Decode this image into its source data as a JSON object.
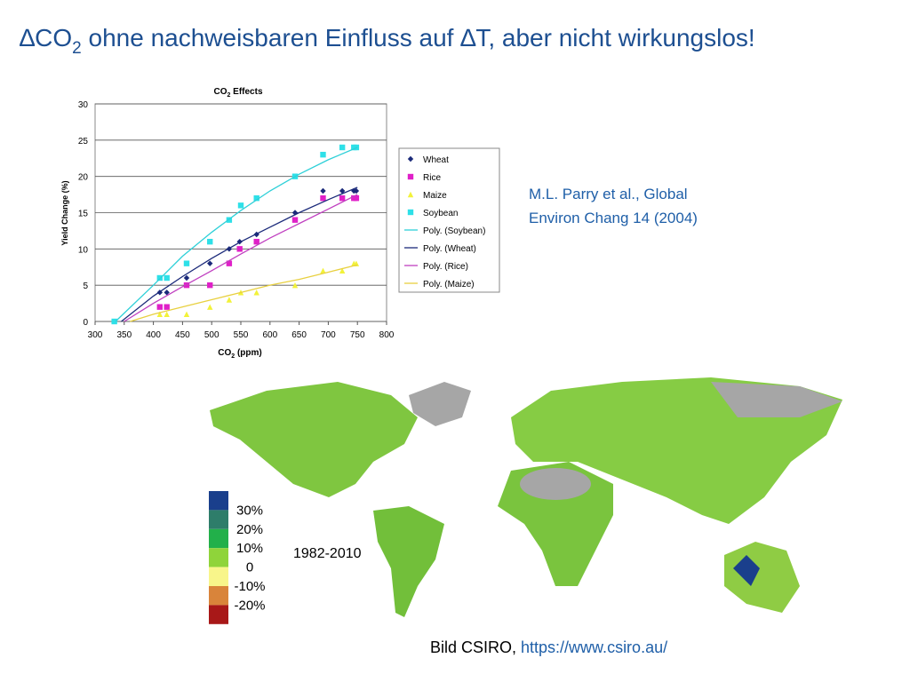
{
  "header": {
    "title": [
      "∆CO",
      "2",
      " ohne nachweisbaren Einfluss auf ∆T, aber nicht wirkungslos!"
    ]
  },
  "chart_data": {
    "type": "scatter",
    "title": [
      "CO",
      "2",
      " Effects"
    ],
    "x_label": [
      "CO",
      "2",
      " (ppm)"
    ],
    "y_label": "Yield Change (%)",
    "xlim": [
      300,
      800
    ],
    "xticks": [
      300,
      350,
      400,
      450,
      500,
      550,
      600,
      650,
      700,
      750,
      800
    ],
    "ylim": [
      0,
      30
    ],
    "yticks": [
      0,
      5,
      10,
      15,
      20,
      25,
      30
    ],
    "grid": true,
    "legend": "right",
    "series": [
      {
        "name": "Wheat",
        "color": "#1b2a7a",
        "marker": "diamond",
        "x": [
          411,
          423,
          457,
          497,
          530,
          548,
          577,
          643,
          691,
          724,
          744,
          748
        ],
        "values": [
          4,
          4,
          6,
          8,
          10,
          11,
          12,
          15,
          18,
          18,
          18,
          18
        ]
      },
      {
        "name": "Rice",
        "color": "#e020c8",
        "marker": "square",
        "x": [
          411,
          423,
          457,
          497,
          530,
          548,
          577,
          643,
          691,
          724,
          744,
          748
        ],
        "values": [
          2,
          2,
          5,
          5,
          8,
          10,
          11,
          14,
          17,
          17,
          17,
          17
        ]
      },
      {
        "name": "Maize",
        "color": "#f2f23a",
        "marker": "triangle",
        "x": [
          411,
          423,
          457,
          497,
          530,
          550,
          577,
          643,
          691,
          724,
          744,
          748
        ],
        "values": [
          1,
          1,
          1,
          2,
          3,
          4,
          4,
          5,
          7,
          7,
          8,
          8
        ]
      },
      {
        "name": "Soybean",
        "color": "#2ee0e8",
        "marker": "square",
        "x": [
          333,
          411,
          423,
          457,
          497,
          530,
          550,
          577,
          643,
          691,
          724,
          744,
          748
        ],
        "values": [
          0,
          6,
          6,
          8,
          11,
          14,
          16,
          17,
          20,
          23,
          24,
          24,
          24
        ]
      },
      {
        "name": "Poly. (Soybean)",
        "color": "#2ed0d8",
        "marker": "line",
        "x": [
          335,
          400,
          450,
          500,
          550,
          600,
          650,
          700,
          750
        ],
        "values": [
          0,
          5,
          9,
          12.3,
          15.3,
          18,
          20.3,
          22.3,
          24
        ]
      },
      {
        "name": "Poly. (Wheat)",
        "color": "#1b2a7a",
        "marker": "line",
        "x": [
          345,
          400,
          450,
          500,
          550,
          600,
          650,
          700,
          750
        ],
        "values": [
          0,
          3.5,
          6.2,
          8.7,
          11,
          13,
          15,
          16.8,
          18.5
        ]
      },
      {
        "name": "Poly. (Rice)",
        "color": "#c040c0",
        "marker": "line",
        "x": [
          350,
          400,
          450,
          500,
          550,
          600,
          650,
          700,
          750
        ],
        "values": [
          0,
          2.5,
          4.8,
          7,
          9.3,
          11.5,
          13.5,
          15.5,
          17.5
        ]
      },
      {
        "name": "Poly. (Maize)",
        "color": "#e8d040",
        "marker": "line",
        "x": [
          360,
          400,
          450,
          500,
          550,
          600,
          650,
          700,
          750
        ],
        "values": [
          0,
          1,
          2,
          3,
          4,
          5,
          5.8,
          6.8,
          7.8
        ]
      }
    ]
  },
  "citation": [
    "M.L. Parry et al., Global",
    "Environ Chang 14 (2004)"
  ],
  "map": {
    "period": "1982-2010",
    "legend_colors": [
      "#1a3f8c",
      "#2e7d6a",
      "#22b04a",
      "#8fd43a",
      "#f8f58a",
      "#d9843a",
      "#a81818"
    ],
    "legend_labels": [
      "30%",
      "20%",
      "10%",
      "0",
      "-10%",
      "-20%"
    ],
    "credit": "Bild CSIRO, ",
    "link": "https://www.csiro.au/"
  }
}
